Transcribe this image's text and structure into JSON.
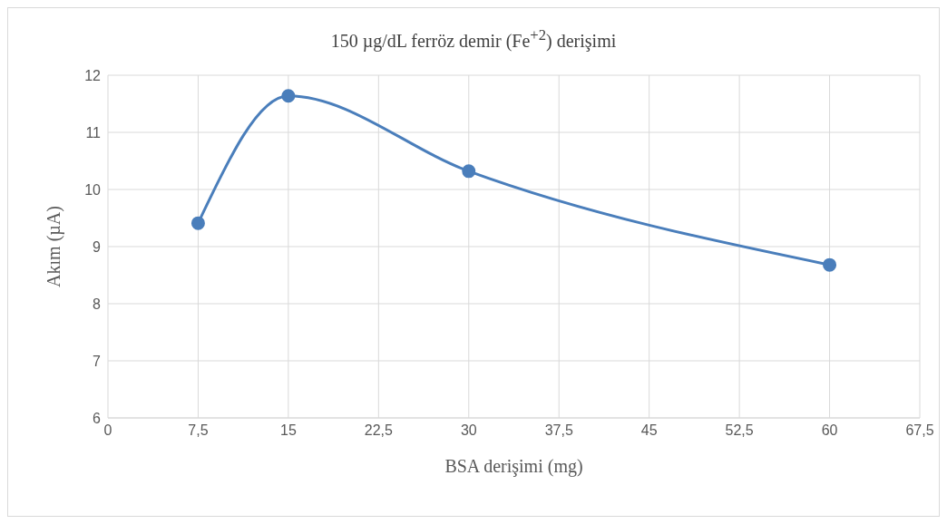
{
  "chart_data": {
    "type": "line",
    "title": "150 µg/dL ferröz demir (Fe$^{+2}$) derişimi",
    "xlabel": "BSA derişimi (mg)",
    "ylabel": "Akım (µA)",
    "x": [
      7.5,
      15,
      30,
      60
    ],
    "series": [
      {
        "color": "#4a7ebb",
        "values": [
          9.41,
          11.64,
          10.32,
          8.68
        ]
      }
    ],
    "xlim": [
      0,
      67.5
    ],
    "xticks": [
      0,
      {
        "value": 7.5,
        "label": "7,5"
      },
      15,
      {
        "value": 22.5,
        "label": "22,5"
      },
      30,
      {
        "value": 37.5,
        "label": "37,5"
      },
      45,
      {
        "value": 52.5,
        "label": "52,5"
      },
      60,
      {
        "value": 67.5,
        "label": "67,5"
      }
    ],
    "ylim": [
      6,
      12
    ],
    "yticks": [
      6,
      7,
      8,
      9,
      10,
      11,
      12
    ],
    "grid": true,
    "marker": "circle",
    "line_style": "solid"
  }
}
